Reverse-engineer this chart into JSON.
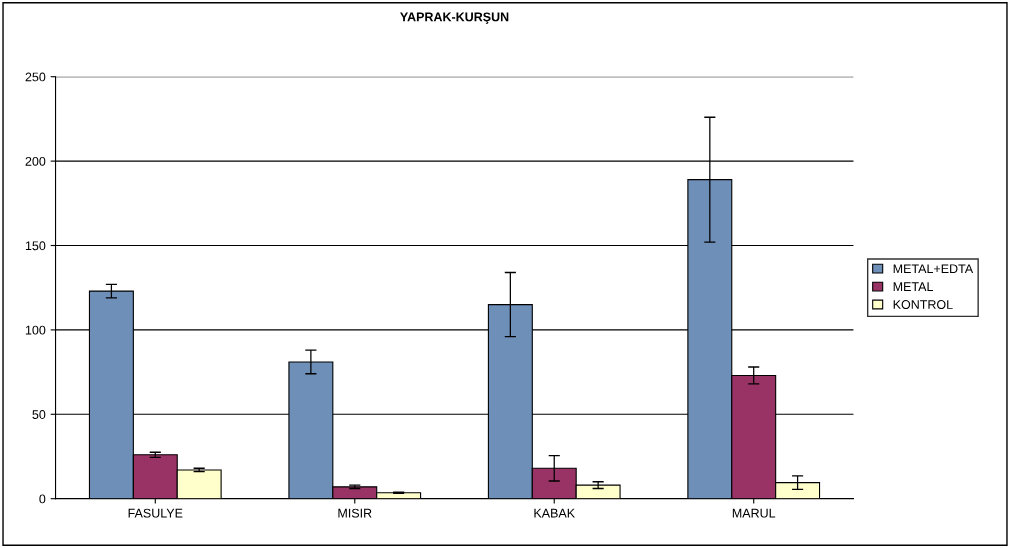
{
  "chart_data": {
    "type": "bar",
    "title": "YAPRAK-KURŞUN",
    "categories": [
      "FASULYE",
      "MISIR",
      "KABAK",
      "MARUL"
    ],
    "series": [
      {
        "name": "METAL+EDTA",
        "color": "#6d8fb8",
        "values": [
          123,
          81,
          115,
          189
        ],
        "errors": [
          4,
          7,
          19,
          37
        ]
      },
      {
        "name": "METAL",
        "color": "#993366",
        "values": [
          26,
          7,
          18,
          73
        ],
        "errors": [
          1.5,
          1,
          7.5,
          5
        ]
      },
      {
        "name": "KONTROL",
        "color": "#ffffcc",
        "values": [
          17,
          3.5,
          8,
          9.5
        ],
        "errors": [
          1,
          0.3,
          2,
          4
        ]
      }
    ],
    "ylim": [
      0,
      250
    ],
    "yticks": [
      0,
      50,
      100,
      150,
      200,
      250
    ],
    "grid": "y",
    "legend": "right"
  }
}
